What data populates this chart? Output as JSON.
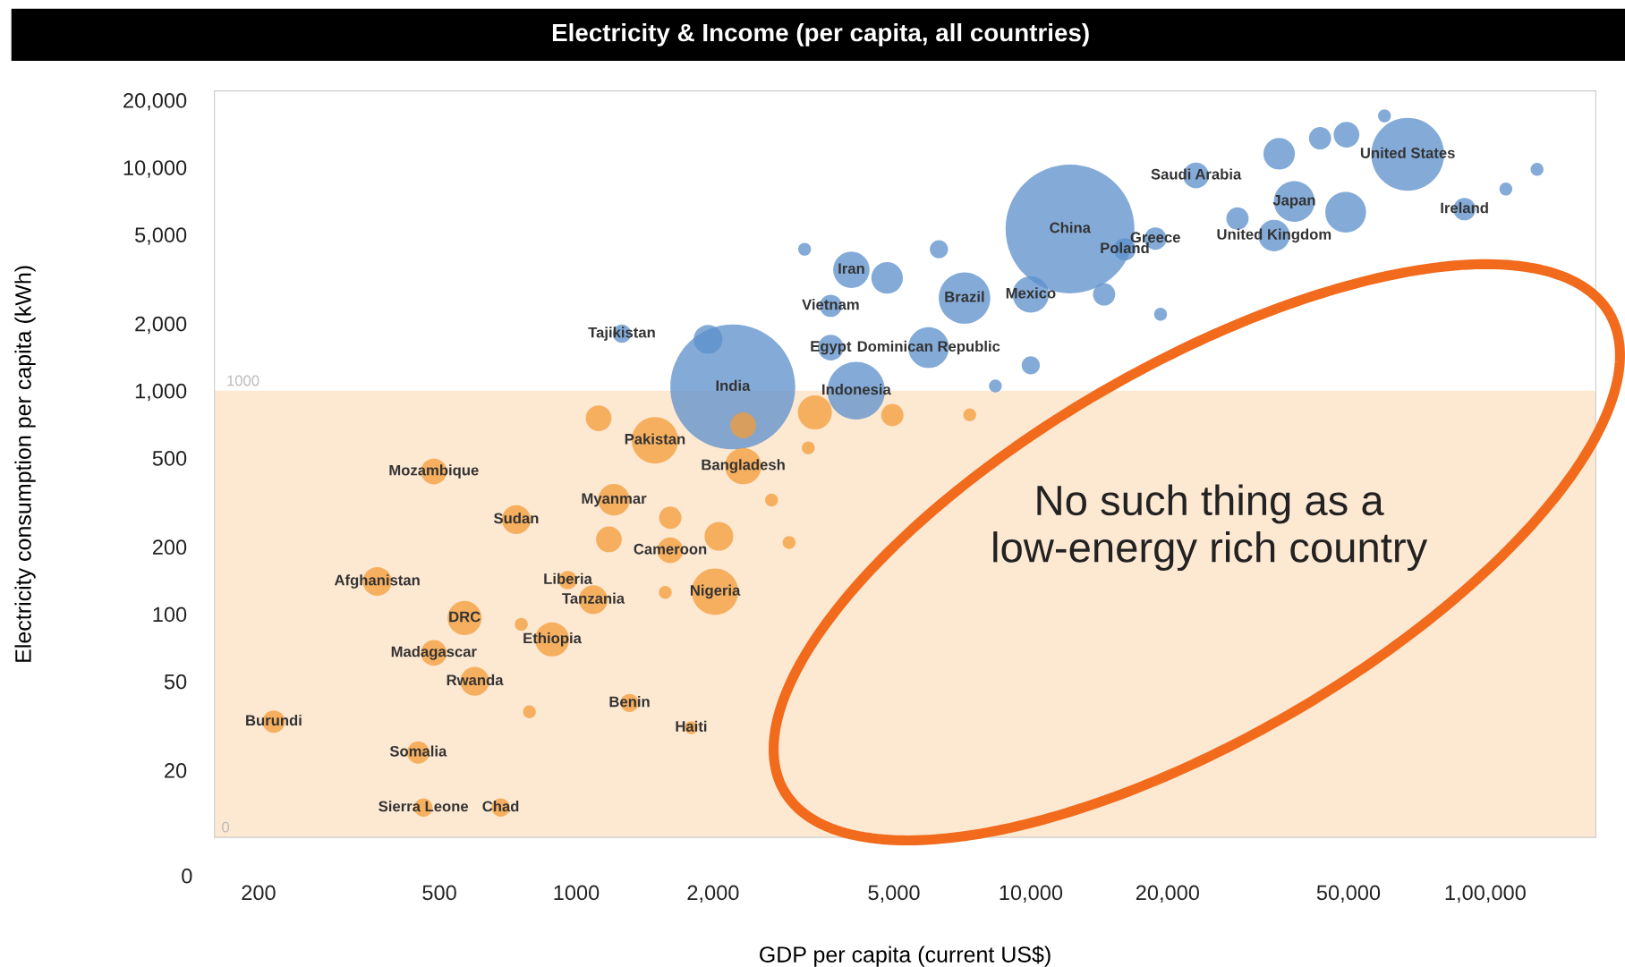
{
  "chart_data": {
    "type": "bubble",
    "title": "Electricity & Income (per capita, all countries)",
    "xlabel": "GDP per capita (current US$)",
    "ylabel": "Electricity consumption per capita (kWh)",
    "log": "xy",
    "xlim": [
      160,
      175000
    ],
    "ylim": [
      10,
      22000
    ],
    "xticks": [
      200,
      500,
      1000,
      {
        "value": 2000,
        "label": "2,000"
      },
      {
        "value": 5000,
        "label": "5,000"
      },
      {
        "value": 10000,
        "label": "10,000"
      },
      {
        "value": 20000,
        "label": "20,000"
      },
      {
        "value": 50000,
        "label": "50,000"
      },
      {
        "value": 100000,
        "label": "1,00,000"
      }
    ],
    "yticks": [
      20,
      50,
      100,
      200,
      500,
      {
        "value": 1000,
        "label": "1,000"
      },
      {
        "value": 2000,
        "label": "2,000"
      },
      {
        "value": 5000,
        "label": "5,000"
      },
      {
        "value": 10000,
        "label": "10,000"
      },
      {
        "value": 20000,
        "label": "20,000"
      }
    ],
    "series": [
      {
        "color": "#5b8fcb",
        "x": [
          12200,
          2210,
          67500,
          38000,
          90000,
          34300,
          23100,
          18800,
          16100,
          7150,
          10000,
          4030,
          3630,
          3630,
          5960,
          4130,
          1260,
          1950,
          4830,
          3180,
          43300,
          49500,
          60000,
          130000,
          111000,
          49300,
          28500,
          14500,
          19300,
          8360,
          10000,
          35200,
          6280
        ],
        "values": [
          5300,
          1040,
          11450,
          7040,
          6500,
          4950,
          9200,
          4800,
          4300,
          2600,
          2700,
          3480,
          2400,
          1560,
          1560,
          1000,
          1800,
          1700,
          3200,
          4300,
          13500,
          14000,
          17000,
          9800,
          8000,
          6300,
          5900,
          2700,
          2200,
          1050,
          1300,
          11500,
          4300
        ],
        "sizes": [
          1.0,
          0.94,
          0.32,
          0.1,
          0.03,
          0.06,
          0.04,
          0.03,
          0.03,
          0.16,
          0.08,
          0.08,
          0.03,
          0.04,
          0.1,
          0.2,
          0.02,
          0.05,
          0.06,
          0.01,
          0.03,
          0.04,
          0.01,
          0.01,
          0.01,
          0.1,
          0.03,
          0.03,
          0.01,
          0.01,
          0.02,
          0.06,
          0.02
        ]
      },
      {
        "color": "#f39c38",
        "x": [
          1490,
          2330,
          486,
          738,
          1210,
          1610,
          1180,
          958,
          365,
          2020,
          1090,
          568,
          885,
          486,
          598,
          1310,
          1790,
          216,
          449,
          461,
          682,
          1120,
          3350,
          4960,
          7340,
          3240,
          2690,
          2940,
          2060,
          1570,
          757,
          789,
          1610,
          2330
        ],
        "values": [
          600,
          460,
          435,
          265,
          325,
          193,
          216,
          142,
          140,
          126,
          116,
          96,
          77,
          67,
          50,
          40,
          31,
          33,
          24,
          13.6,
          13.6,
          753,
          800,
          778,
          780,
          555,
          324,
          209,
          223,
          125,
          90,
          36.5,
          270,
          700
        ],
        "sizes": [
          0.13,
          0.08,
          0.04,
          0.05,
          0.06,
          0.04,
          0.04,
          0.02,
          0.05,
          0.13,
          0.05,
          0.07,
          0.07,
          0.04,
          0.05,
          0.02,
          0.01,
          0.03,
          0.03,
          0.02,
          0.02,
          0.04,
          0.07,
          0.03,
          0.01,
          0.01,
          0.01,
          0.01,
          0.05,
          0.01,
          0.01,
          0.01,
          0.03,
          0.04
        ]
      }
    ],
    "bands": [
      {
        "axis": "y",
        "from": 10,
        "to": 1000,
        "label": "1000",
        "color": "#fde8d2"
      }
    ],
    "annotations": [
      "0",
      "0",
      "No such thing as a\nlow-energy rich country",
      {
        "text": "China",
        "x": 12200,
        "y": 5300
      },
      {
        "text": "India",
        "x": 2210,
        "y": 1040
      },
      {
        "text": "United States",
        "x": 67500,
        "y": 11450
      },
      {
        "text": "Japan",
        "x": 38000,
        "y": 7040
      },
      {
        "text": "Ireland",
        "x": 90000,
        "y": 6500
      },
      {
        "text": "United Kingdom",
        "x": 34300,
        "y": 4950
      },
      {
        "text": "Saudi Arabia",
        "x": 23100,
        "y": 9200
      },
      {
        "text": "Greece",
        "x": 18800,
        "y": 4800
      },
      {
        "text": "Poland",
        "x": 16100,
        "y": 4300
      },
      {
        "text": "Brazil",
        "x": 7150,
        "y": 2600
      },
      {
        "text": "Mexico",
        "x": 10000,
        "y": 2700
      },
      {
        "text": "Iran",
        "x": 4030,
        "y": 3480
      },
      {
        "text": "Vietnam",
        "x": 3630,
        "y": 2400
      },
      {
        "text": "Egypt",
        "x": 3630,
        "y": 1560
      },
      {
        "text": "Dominican Republic",
        "x": 5960,
        "y": 1560
      },
      {
        "text": "Indonesia",
        "x": 4130,
        "y": 1000
      },
      {
        "text": "Tajikistan",
        "x": 1260,
        "y": 1800
      },
      {
        "text": "Pakistan",
        "x": 1490,
        "y": 600
      },
      {
        "text": "Bangladesh",
        "x": 2330,
        "y": 460
      },
      {
        "text": "Mozambique",
        "x": 486,
        "y": 435
      },
      {
        "text": "Sudan",
        "x": 738,
        "y": 265
      },
      {
        "text": "Myanmar",
        "x": 1210,
        "y": 325
      },
      {
        "text": "Cameroon",
        "x": 1610,
        "y": 193
      },
      {
        "text": "Liberia",
        "x": 958,
        "y": 142
      },
      {
        "text": "Afghanistan",
        "x": 365,
        "y": 140
      },
      {
        "text": "Nigeria",
        "x": 2020,
        "y": 126
      },
      {
        "text": "Tanzania",
        "x": 1090,
        "y": 116
      },
      {
        "text": "DRC",
        "x": 568,
        "y": 96
      },
      {
        "text": "Ethiopia",
        "x": 885,
        "y": 77
      },
      {
        "text": "Madagascar",
        "x": 486,
        "y": 67
      },
      {
        "text": "Rwanda",
        "x": 598,
        "y": 50
      },
      {
        "text": "Benin",
        "x": 1310,
        "y": 40
      },
      {
        "text": "Haiti",
        "x": 1790,
        "y": 31
      },
      {
        "text": "Burundi",
        "x": 216,
        "y": 33
      },
      {
        "text": "Somalia",
        "x": 449,
        "y": 24
      },
      {
        "text": "Sierra Leone",
        "x": 461,
        "y": 13.6
      },
      {
        "text": "Chad",
        "x": 682,
        "y": 13.6
      }
    ]
  }
}
